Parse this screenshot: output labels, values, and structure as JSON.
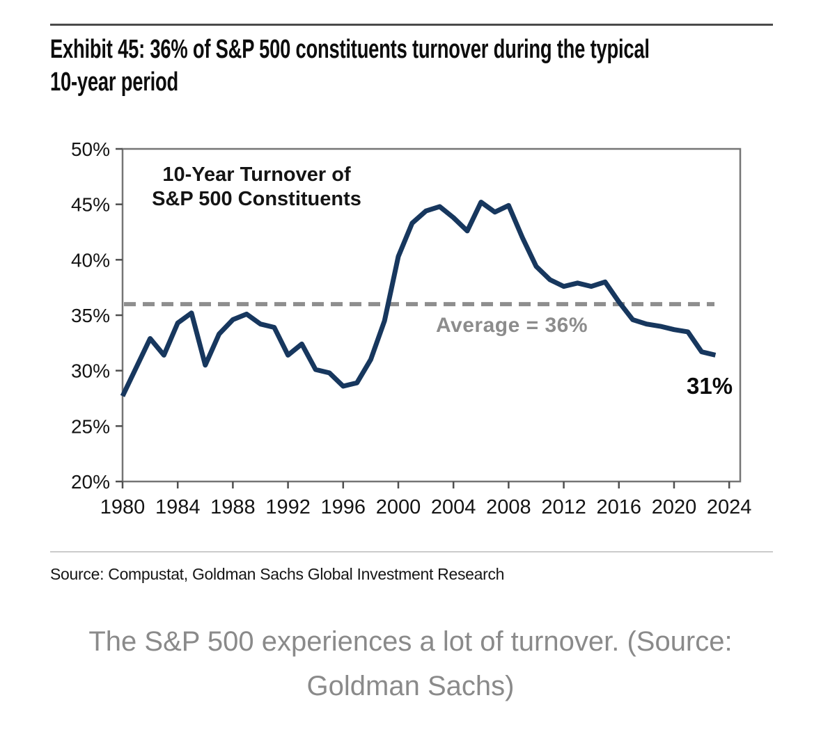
{
  "header": {
    "title": "Exhibit 45: 36% of S&P 500 constituents turnover during the typical 10-year period",
    "title_line1": "Exhibit 45: 36% of S&P 500 constituents turnover during the typical",
    "title_line2": "10-year period"
  },
  "chart_data": {
    "type": "line",
    "title": "10-Year Turnover of S&P 500 Constituents",
    "title_lines": [
      "10-Year Turnover of",
      "S&P 500 Constituents"
    ],
    "series_name": "10-year turnover of S&P 500 constituents",
    "x": [
      1980,
      1981,
      1982,
      1983,
      1984,
      1985,
      1986,
      1987,
      1988,
      1989,
      1990,
      1991,
      1992,
      1993,
      1994,
      1995,
      1996,
      1997,
      1998,
      1999,
      2000,
      2001,
      2002,
      2003,
      2004,
      2005,
      2006,
      2007,
      2008,
      2009,
      2010,
      2011,
      2012,
      2013,
      2014,
      2015,
      2016,
      2017,
      2018,
      2019,
      2020,
      2021,
      2022,
      2023
    ],
    "values": [
      27.7,
      30.3,
      32.9,
      31.4,
      34.3,
      35.2,
      30.5,
      33.3,
      34.6,
      35.1,
      34.2,
      33.9,
      31.4,
      32.4,
      30.1,
      29.8,
      28.6,
      28.9,
      31.0,
      34.5,
      40.3,
      43.3,
      44.4,
      44.8,
      43.8,
      42.6,
      45.2,
      44.3,
      44.9,
      42.0,
      39.4,
      38.2,
      37.6,
      37.9,
      37.6,
      38.0,
      36.2,
      34.6,
      34.2,
      34.0,
      33.7,
      33.5,
      31.7,
      31.4
    ],
    "average_line": {
      "value": 36,
      "label": "Average = 36%"
    },
    "end_label": "31%",
    "end_value": 31,
    "x_ticks": [
      1980,
      1984,
      1988,
      1992,
      1996,
      2000,
      2004,
      2008,
      2012,
      2016,
      2020,
      2024
    ],
    "y_ticks": [
      20,
      25,
      30,
      35,
      40,
      45,
      50
    ],
    "y_tick_suffix": "%",
    "xlim": [
      1980,
      2024.8
    ],
    "ylim": [
      20,
      50
    ],
    "grid": false,
    "legend": "none",
    "line_color": "#17375e",
    "average_color": "#8e8e8e",
    "axis_color": "#757575",
    "tick_color": "#4f4f4f",
    "tick_label_color": "#141414"
  },
  "footer": {
    "source": "Source: Compustat, Goldman Sachs Global Investment Research",
    "caption": "The S&P 500 experiences a lot of turnover. (Source: Goldman Sachs)",
    "caption_line1": "The S&P 500 experiences a lot of turnover. (Source:",
    "caption_line2": "Goldman Sachs)"
  }
}
